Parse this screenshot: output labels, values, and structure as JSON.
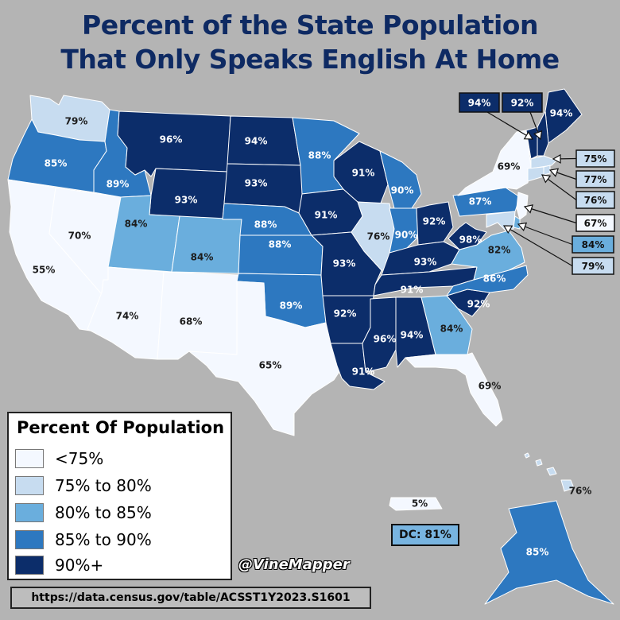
{
  "title_line1": "Percent of the State Population",
  "title_line2": "That Only Speaks English At Home",
  "legend": {
    "title": "Percent Of Population",
    "items": [
      {
        "label": "<75%",
        "color": "#f4f8ff"
      },
      {
        "label": "75% to 80%",
        "color": "#c7dcf0"
      },
      {
        "label": "80% to 85%",
        "color": "#6aaedd"
      },
      {
        "label": "85% to 90%",
        "color": "#2d78c0"
      },
      {
        "label": "90%+",
        "color": "#0c2d6a"
      }
    ]
  },
  "credit": "@VineMapper",
  "source": "https://data.census.gov/table/ACSST1Y2023.S1601",
  "dc_box": "DC: 81%",
  "colors": {
    "background": "#b4b4b4",
    "title": "#0e2a63",
    "lt75": "#f4f8ff",
    "b75_80": "#c7dcf0",
    "b80_85": "#6aaedd",
    "b85_90": "#2d78c0",
    "gt90": "#0c2d6a"
  },
  "states": [
    {
      "id": "WA",
      "value": "79%",
      "tier": "b75_80"
    },
    {
      "id": "OR",
      "value": "85%",
      "tier": "b85_90"
    },
    {
      "id": "CA",
      "value": "55%",
      "tier": "lt75"
    },
    {
      "id": "NV",
      "value": "70%",
      "tier": "lt75"
    },
    {
      "id": "ID",
      "value": "89%",
      "tier": "b85_90"
    },
    {
      "id": "MT",
      "value": "96%",
      "tier": "gt90"
    },
    {
      "id": "WY",
      "value": "93%",
      "tier": "gt90"
    },
    {
      "id": "UT",
      "value": "84%",
      "tier": "b80_85"
    },
    {
      "id": "AZ",
      "value": "74%",
      "tier": "lt75"
    },
    {
      "id": "CO",
      "value": "84%",
      "tier": "b80_85"
    },
    {
      "id": "NM",
      "value": "68%",
      "tier": "lt75"
    },
    {
      "id": "ND",
      "value": "94%",
      "tier": "gt90"
    },
    {
      "id": "SD",
      "value": "93%",
      "tier": "gt90"
    },
    {
      "id": "NE",
      "value": "88%",
      "tier": "b85_90"
    },
    {
      "id": "KS",
      "value": "88%",
      "tier": "b85_90"
    },
    {
      "id": "OK",
      "value": "89%",
      "tier": "b85_90"
    },
    {
      "id": "TX",
      "value": "65%",
      "tier": "lt75"
    },
    {
      "id": "MN",
      "value": "88%",
      "tier": "b85_90"
    },
    {
      "id": "IA",
      "value": "91%",
      "tier": "gt90"
    },
    {
      "id": "MO",
      "value": "93%",
      "tier": "gt90"
    },
    {
      "id": "AR",
      "value": "92%",
      "tier": "gt90"
    },
    {
      "id": "LA",
      "value": "91%",
      "tier": "gt90"
    },
    {
      "id": "WI",
      "value": "91%",
      "tier": "gt90"
    },
    {
      "id": "IL",
      "value": "76%",
      "tier": "b75_80"
    },
    {
      "id": "MI",
      "value": "90%",
      "tier": "b85_90"
    },
    {
      "id": "IN",
      "value": "90%",
      "tier": "b85_90"
    },
    {
      "id": "OH",
      "value": "92%",
      "tier": "gt90"
    },
    {
      "id": "KY",
      "value": "93%",
      "tier": "gt90"
    },
    {
      "id": "TN",
      "value": "91%",
      "tier": "gt90"
    },
    {
      "id": "MS",
      "value": "96%",
      "tier": "gt90"
    },
    {
      "id": "AL",
      "value": "94%",
      "tier": "gt90"
    },
    {
      "id": "GA",
      "value": "84%",
      "tier": "b80_85"
    },
    {
      "id": "FL",
      "value": "69%",
      "tier": "lt75"
    },
    {
      "id": "SC",
      "value": "92%",
      "tier": "gt90"
    },
    {
      "id": "NC",
      "value": "86%",
      "tier": "b85_90"
    },
    {
      "id": "VA",
      "value": "82%",
      "tier": "b80_85"
    },
    {
      "id": "WV",
      "value": "98%",
      "tier": "gt90"
    },
    {
      "id": "PA",
      "value": "87%",
      "tier": "b85_90"
    },
    {
      "id": "NY",
      "value": "69%",
      "tier": "lt75"
    },
    {
      "id": "ME",
      "value": "94%",
      "tier": "gt90"
    },
    {
      "id": "AK",
      "value": "85%",
      "tier": "b85_90"
    },
    {
      "id": "HI",
      "value": "76%",
      "tier": "b75_80"
    },
    {
      "id": "PR",
      "value": "5%",
      "tier": "lt75"
    }
  ],
  "callouts": [
    {
      "id": "VT",
      "value": "94%",
      "tier": "gt90"
    },
    {
      "id": "NH",
      "value": "92%",
      "tier": "gt90"
    },
    {
      "id": "MA",
      "value": "75%",
      "tier": "b75_80"
    },
    {
      "id": "RI",
      "value": "77%",
      "tier": "b75_80"
    },
    {
      "id": "CT",
      "value": "76%",
      "tier": "b75_80"
    },
    {
      "id": "NJ",
      "value": "67%",
      "tier": "lt75"
    },
    {
      "id": "DE",
      "value": "84%",
      "tier": "b80_85"
    },
    {
      "id": "MD",
      "value": "79%",
      "tier": "b75_80"
    }
  ]
}
